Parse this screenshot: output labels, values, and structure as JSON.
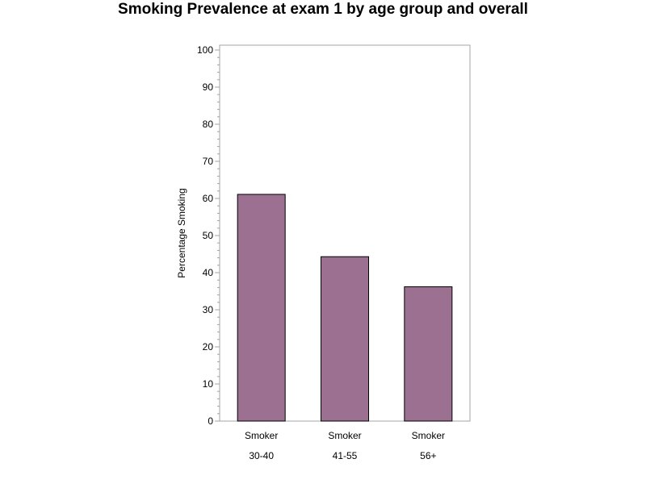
{
  "chart_data": {
    "type": "bar",
    "title": "Smoking Prevalence at exam 1 by age group and overall",
    "ylabel": "Percentage Smoking",
    "xlabel": "",
    "categories": [
      [
        "Smoker",
        "30-40"
      ],
      [
        "Smoker",
        "41-55"
      ],
      [
        "Smoker",
        "56+"
      ]
    ],
    "values": [
      61.1,
      44.3,
      36.2
    ],
    "ylim": [
      0,
      100
    ],
    "yticks": [
      0,
      10,
      20,
      30,
      40,
      50,
      60,
      70,
      80,
      90,
      100
    ],
    "grid": false,
    "bar_color": "#9b7091"
  }
}
